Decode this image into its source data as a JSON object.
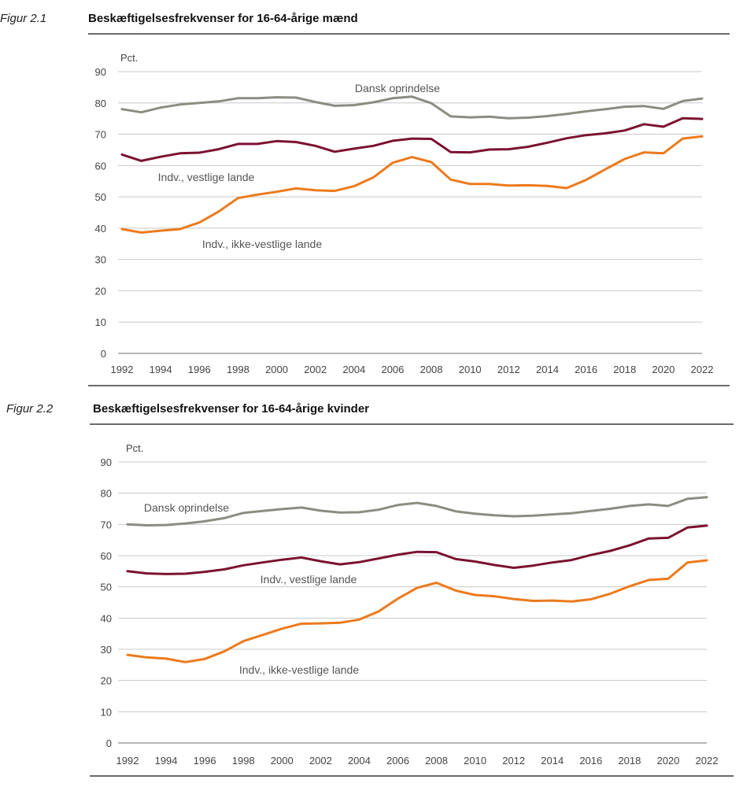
{
  "figures": [
    {
      "label": "Figur 2.1",
      "title": "Beskæftigelsesfrekvenser for 16-64-årige mænd"
    },
    {
      "label": "Figur 2.2",
      "title": "Beskæftigelsesfrekvenser for 16-64-årige kvinder"
    }
  ],
  "chart_data": [
    {
      "type": "line",
      "title": "Beskæftigelsesfrekvenser for 16-64-årige mænd",
      "ylabel": "Pct.",
      "xlabel": "",
      "ylim": [
        0,
        90
      ],
      "yticks": [
        0,
        10,
        20,
        30,
        40,
        50,
        60,
        70,
        80,
        90
      ],
      "xticks": [
        1992,
        1994,
        1996,
        1998,
        2000,
        2002,
        2004,
        2006,
        2008,
        2010,
        2012,
        2014,
        2016,
        2018,
        2020,
        2022
      ],
      "x": [
        1992,
        1993,
        1994,
        1995,
        1996,
        1997,
        1998,
        1999,
        2000,
        2001,
        2002,
        2003,
        2004,
        2005,
        2006,
        2007,
        2008,
        2009,
        2010,
        2011,
        2012,
        2013,
        2014,
        2015,
        2016,
        2017,
        2018,
        2019,
        2020,
        2021,
        2022
      ],
      "grid": true,
      "series": [
        {
          "name": "Dansk oprindelse",
          "color": "#8c8c82",
          "values": [
            78,
            77,
            78.5,
            79.5,
            80,
            80.5,
            81.5,
            81.5,
            81.8,
            81.7,
            80.3,
            79.1,
            79.3,
            80.2,
            81.5,
            82,
            79.9,
            75.7,
            75.4,
            75.6,
            75.1,
            75.3,
            75.8,
            76.5,
            77.3,
            78,
            78.8,
            79,
            78.1,
            80.6,
            81.4
          ],
          "label": "Dansk oprindelse"
        },
        {
          "name": "Indv., vestlige lande",
          "color": "#7b1230",
          "values": [
            63.5,
            61.5,
            62.8,
            63.9,
            64.1,
            65.2,
            66.9,
            66.9,
            67.8,
            67.5,
            66.3,
            64.4,
            65.4,
            66.3,
            67.9,
            68.6,
            68.5,
            64.3,
            64.2,
            65.1,
            65.2,
            66,
            67.3,
            68.7,
            69.7,
            70.3,
            71.2,
            73.2,
            72.4,
            75.1,
            74.9
          ],
          "label": "Indv., vestlige lande"
        },
        {
          "name": "Indv., ikke-vestlige lande",
          "color": "#ec7a1c",
          "values": [
            39.7,
            38.6,
            39.2,
            39.7,
            41.8,
            45.3,
            49.6,
            50.7,
            51.6,
            52.7,
            52.1,
            51.9,
            53.4,
            56.2,
            60.9,
            62.7,
            61.1,
            55.5,
            54.1,
            54.1,
            53.6,
            53.7,
            53.5,
            52.8,
            55.4,
            58.8,
            62.1,
            64.2,
            63.9,
            68.6,
            69.3
          ],
          "label": "Indv., ikke-vestlige lande"
        }
      ]
    },
    {
      "type": "line",
      "title": "Beskæftigelsesfrekvenser for 16-64-årige kvinder",
      "ylabel": "Pct.",
      "xlabel": "",
      "ylim": [
        0,
        90
      ],
      "yticks": [
        0,
        10,
        20,
        30,
        40,
        50,
        60,
        70,
        80,
        90
      ],
      "xticks": [
        1992,
        1994,
        1996,
        1998,
        2000,
        2002,
        2004,
        2006,
        2008,
        2010,
        2012,
        2014,
        2016,
        2018,
        2020,
        2022
      ],
      "x": [
        1992,
        1993,
        1994,
        1995,
        1996,
        1997,
        1998,
        1999,
        2000,
        2001,
        2002,
        2003,
        2004,
        2005,
        2006,
        2007,
        2008,
        2009,
        2010,
        2011,
        2012,
        2013,
        2014,
        2015,
        2016,
        2017,
        2018,
        2019,
        2020,
        2021,
        2022
      ],
      "grid": true,
      "series": [
        {
          "name": "Dansk oprindelse",
          "color": "#8c8c82",
          "values": [
            70,
            69.7,
            69.8,
            70.3,
            71,
            72,
            73.7,
            74.3,
            74.9,
            75.4,
            74.4,
            73.8,
            73.9,
            74.7,
            76.2,
            76.9,
            75.9,
            74.2,
            73.4,
            72.9,
            72.6,
            72.8,
            73.2,
            73.6,
            74.3,
            75,
            75.9,
            76.4,
            75.9,
            78.2,
            78.7
          ],
          "label": "Dansk oprindelse"
        },
        {
          "name": "Indv., vestlige lande",
          "color": "#7b1230",
          "values": [
            55,
            54.3,
            54.1,
            54.2,
            54.8,
            55.6,
            56.9,
            57.8,
            58.7,
            59.4,
            58.2,
            57.2,
            57.9,
            59.1,
            60.3,
            61.2,
            61.1,
            58.9,
            58.1,
            57,
            56.1,
            56.8,
            57.8,
            58.6,
            60.2,
            61.5,
            63.3,
            65.5,
            65.7,
            69,
            69.6
          ],
          "label": "Indv., vestlige lande"
        },
        {
          "name": "Indv., ikke-vestlige lande",
          "color": "#ec7a1c",
          "values": [
            28.2,
            27.4,
            27,
            25.9,
            26.9,
            29.3,
            32.6,
            34.6,
            36.6,
            38.2,
            38.3,
            38.5,
            39.5,
            42.1,
            46.2,
            49.7,
            51.3,
            48.8,
            47.4,
            47,
            46.1,
            45.5,
            45.6,
            45.3,
            46,
            47.8,
            50.2,
            52.2,
            52.6,
            57.8,
            58.5
          ],
          "label": "Indv., ikke-vestlige lande"
        }
      ]
    }
  ]
}
